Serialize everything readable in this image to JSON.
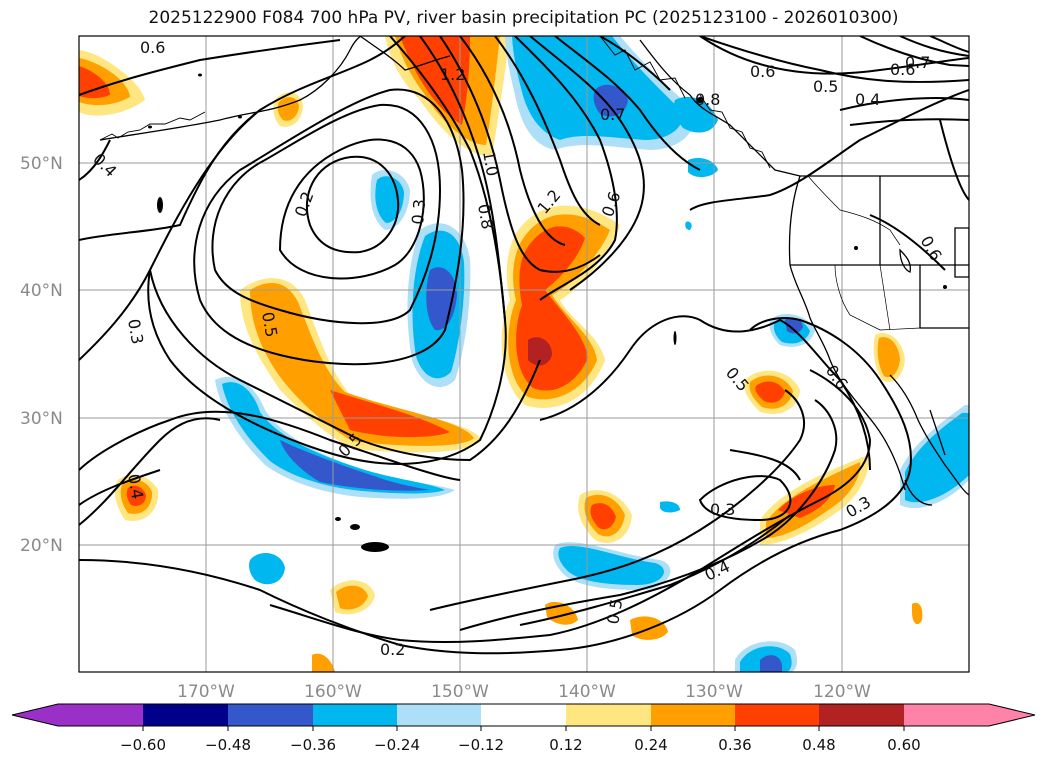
{
  "title": "2025122900 F084 700 hPa PV, river basin precipitation PC (2025123100 - 2026010300)",
  "lat_labels": [
    "50°N",
    "40°N",
    "30°N",
    "20°N"
  ],
  "lon_labels": [
    "170°W",
    "160°W",
    "150°W",
    "140°W",
    "130°W",
    "120°W"
  ],
  "colorbar": {
    "ticks": [
      "−0.60",
      "−0.48",
      "−0.36",
      "−0.24",
      "−0.12",
      "0.12",
      "0.24",
      "0.36",
      "0.48",
      "0.60"
    ],
    "colors": {
      "below": "#9b30c8",
      "n060": "#00008b",
      "n048": "#3557cc",
      "n036": "#00b7f0",
      "n024": "#ade0f8",
      "mid": "#ffffff",
      "p012": "#ffe680",
      "p024": "#ffa000",
      "p036": "#ff4000",
      "p048": "#b22222",
      "above": "#ff82a9"
    }
  },
  "contour_labels": [
    "0.6",
    "1.2",
    "0.7",
    "0.6",
    "0.5",
    "0.4",
    "0.8",
    "0.7",
    "0.6",
    "0.4",
    "0.2",
    "0.3",
    "1.0",
    "0.8",
    "1.2",
    "0.6",
    "0.3",
    "0.5",
    "0.6",
    "0.5",
    "0.6",
    "0.4",
    "0.5",
    "0.3",
    "0.3",
    "0.4",
    "0.5",
    "0.2"
  ]
}
